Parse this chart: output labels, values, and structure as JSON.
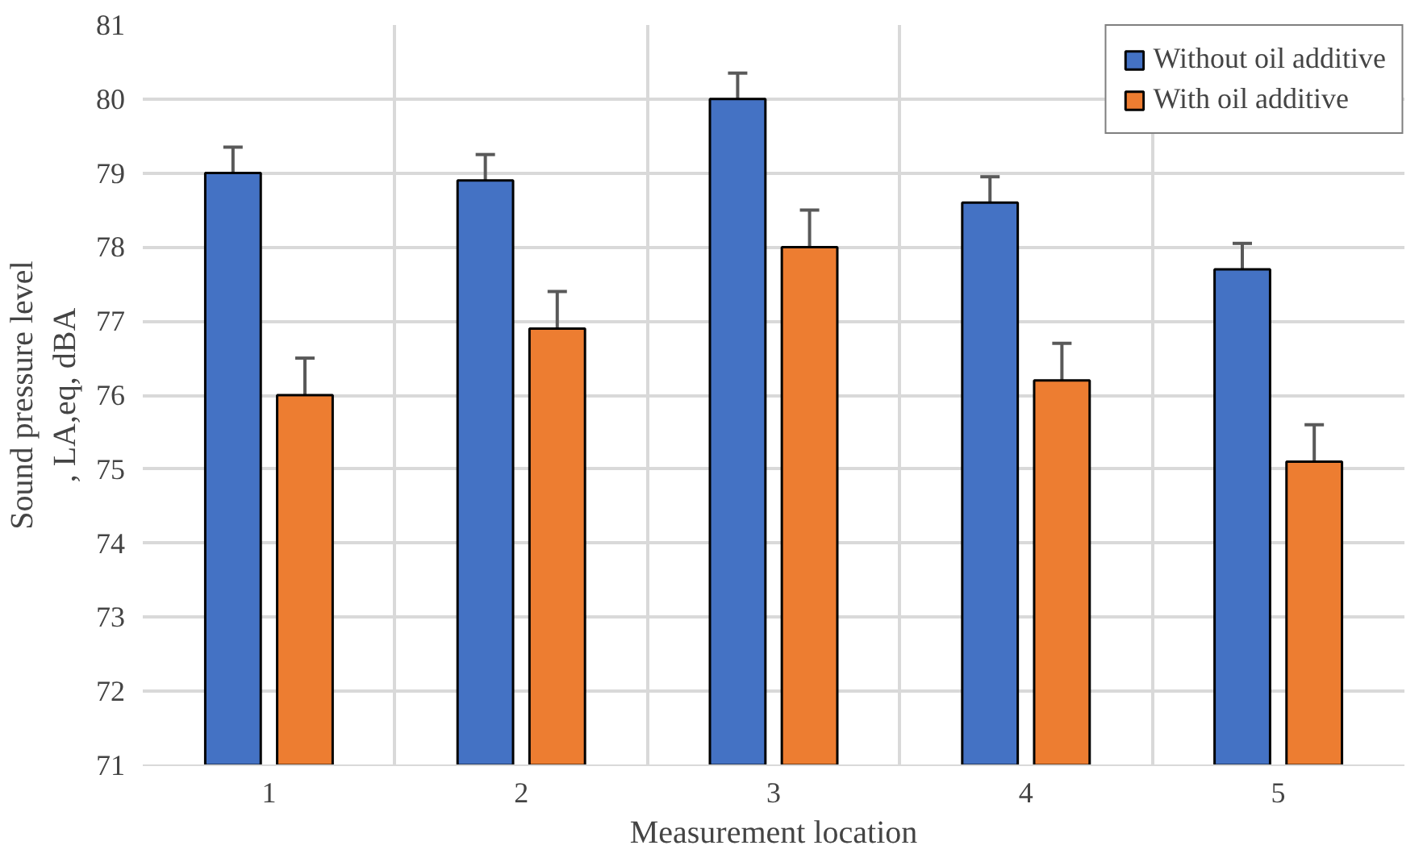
{
  "chart_data": {
    "type": "bar",
    "xlabel": "Measurement location",
    "ylabel": "Sound pressure level\n, LA,eq, dBA",
    "categories": [
      "1",
      "2",
      "3",
      "4",
      "5"
    ],
    "series": [
      {
        "name": "Without oil additive",
        "color": "#4472c4",
        "values": [
          79.0,
          78.9,
          80.0,
          78.6,
          77.7
        ],
        "errors": [
          0.35,
          0.35,
          0.35,
          0.35,
          0.35
        ]
      },
      {
        "name": "With oil additive",
        "color": "#ed7d31",
        "values": [
          76.0,
          76.9,
          78.0,
          76.2,
          75.1
        ],
        "errors": [
          0.5,
          0.5,
          0.5,
          0.5,
          0.5
        ]
      }
    ],
    "ylim": [
      71,
      81
    ],
    "yticks": [
      71,
      72,
      73,
      74,
      75,
      76,
      77,
      78,
      79,
      80,
      81
    ],
    "grid": true,
    "legend": "top right"
  }
}
